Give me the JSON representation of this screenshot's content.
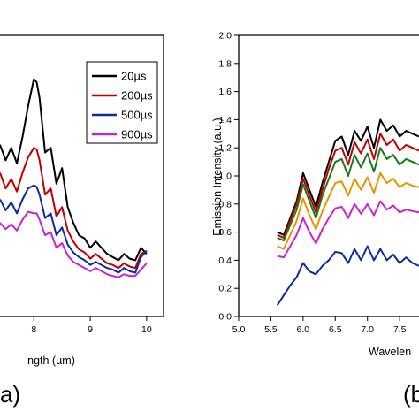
{
  "figure": {
    "panel_a_label": "a)",
    "panel_b_label": "(b"
  },
  "chart_data": [
    {
      "type": "line",
      "panel": "a",
      "xlabel": "ngth (µm)",
      "ylabel": "",
      "xlim": [
        7.4,
        10.3
      ],
      "ylim": [
        0,
        1.8
      ],
      "x_ticks": [
        8,
        9,
        10
      ],
      "x_tick_labels": [
        "8",
        "9",
        "10"
      ],
      "legend": {
        "entries": [
          "20µs",
          "200µs",
          "500µs",
          "900µs"
        ],
        "placement": "top-right"
      },
      "series": [
        {
          "name": "20µs",
          "color": "#000000",
          "x": [
            7.4,
            7.5,
            7.6,
            7.7,
            7.8,
            7.9,
            8.0,
            8.05,
            8.1,
            8.2,
            8.3,
            8.4,
            8.5,
            8.6,
            8.7,
            8.8,
            8.9,
            9.0,
            9.1,
            9.2,
            9.3,
            9.4,
            9.5,
            9.6,
            9.7,
            9.8,
            9.9,
            10.0
          ],
          "y": [
            1.1,
            1.0,
            1.08,
            0.98,
            1.15,
            1.35,
            1.52,
            1.5,
            1.4,
            1.05,
            1.08,
            0.85,
            0.95,
            0.7,
            0.6,
            0.52,
            0.5,
            0.44,
            0.48,
            0.44,
            0.4,
            0.38,
            0.36,
            0.4,
            0.37,
            0.36,
            0.44,
            0.4
          ]
        },
        {
          "name": "200µs",
          "color": "#c00000",
          "x": [
            7.4,
            7.5,
            7.6,
            7.7,
            7.8,
            7.9,
            8.0,
            8.05,
            8.1,
            8.2,
            8.3,
            8.4,
            8.5,
            8.6,
            8.7,
            8.8,
            8.9,
            9.0,
            9.1,
            9.2,
            9.3,
            9.4,
            9.5,
            9.6,
            9.7,
            9.8,
            9.9,
            10.0
          ],
          "y": [
            0.92,
            0.82,
            0.88,
            0.8,
            0.92,
            1.02,
            1.08,
            1.07,
            1.0,
            0.78,
            0.82,
            0.64,
            0.7,
            0.55,
            0.48,
            0.43,
            0.41,
            0.37,
            0.4,
            0.37,
            0.34,
            0.33,
            0.31,
            0.34,
            0.32,
            0.31,
            0.4,
            0.42
          ]
        },
        {
          "name": "500µs",
          "color": "#0a2aa0",
          "x": [
            7.4,
            7.5,
            7.6,
            7.7,
            7.8,
            7.9,
            8.0,
            8.05,
            8.1,
            8.2,
            8.3,
            8.4,
            8.5,
            8.6,
            8.7,
            8.8,
            8.9,
            9.0,
            9.1,
            9.2,
            9.3,
            9.4,
            9.5,
            9.6,
            9.7,
            9.8,
            9.9,
            10.0
          ],
          "y": [
            0.75,
            0.68,
            0.73,
            0.66,
            0.75,
            0.82,
            0.84,
            0.83,
            0.78,
            0.63,
            0.66,
            0.52,
            0.57,
            0.46,
            0.41,
            0.38,
            0.36,
            0.33,
            0.35,
            0.33,
            0.31,
            0.3,
            0.28,
            0.31,
            0.29,
            0.28,
            0.38,
            0.42
          ]
        },
        {
          "name": "900µs",
          "color": "#cc22cc",
          "x": [
            7.4,
            7.5,
            7.6,
            7.7,
            7.8,
            7.9,
            8.0,
            8.05,
            8.1,
            8.2,
            8.3,
            8.4,
            8.5,
            8.6,
            8.7,
            8.8,
            8.9,
            9.0,
            9.1,
            9.2,
            9.3,
            9.4,
            9.5,
            9.6,
            9.7,
            9.8,
            9.9,
            10.0
          ],
          "y": [
            0.6,
            0.56,
            0.59,
            0.55,
            0.62,
            0.67,
            0.66,
            0.66,
            0.62,
            0.52,
            0.54,
            0.44,
            0.47,
            0.39,
            0.35,
            0.33,
            0.31,
            0.29,
            0.31,
            0.29,
            0.27,
            0.26,
            0.25,
            0.27,
            0.26,
            0.26,
            0.3,
            0.34
          ]
        }
      ]
    },
    {
      "type": "line",
      "panel": "b",
      "xlabel": "Wavelen",
      "ylabel": "Emission Intensity (a.u.)",
      "xlim": [
        5.0,
        7.8
      ],
      "ylim": [
        0.0,
        2.0
      ],
      "x_ticks": [
        5.0,
        5.5,
        6.0,
        6.5,
        7.0,
        7.5
      ],
      "x_tick_labels": [
        "5.0",
        "5.5",
        "6.0",
        "6.5",
        "7.0",
        "7.5"
      ],
      "y_ticks": [
        0.0,
        0.2,
        0.4,
        0.6,
        0.8,
        1.0,
        1.2,
        1.4,
        1.6,
        1.8,
        2.0
      ],
      "y_tick_labels": [
        "0.0",
        "0.2",
        "0.4",
        "0.6",
        "0.8",
        "1.0",
        "1.2",
        "1.4",
        "1.6",
        "1.8",
        "2.0"
      ],
      "series": [
        {
          "color": "#000000",
          "x": [
            5.6,
            5.7,
            5.8,
            5.9,
            6.0,
            6.1,
            6.2,
            6.3,
            6.4,
            6.5,
            6.6,
            6.7,
            6.8,
            6.9,
            7.0,
            7.1,
            7.2,
            7.3,
            7.4,
            7.5,
            7.6,
            7.7,
            7.8
          ],
          "y": [
            0.6,
            0.58,
            0.7,
            0.82,
            1.02,
            0.9,
            0.78,
            0.95,
            1.1,
            1.25,
            1.28,
            1.15,
            1.32,
            1.25,
            1.35,
            1.2,
            1.4,
            1.32,
            1.36,
            1.28,
            1.32,
            1.3,
            1.28
          ]
        },
        {
          "color": "#c00000",
          "x": [
            5.6,
            5.7,
            5.8,
            5.9,
            6.0,
            6.1,
            6.2,
            6.3,
            6.4,
            6.5,
            6.6,
            6.7,
            6.8,
            6.9,
            7.0,
            7.1,
            7.2,
            7.3,
            7.4,
            7.5,
            7.6,
            7.7,
            7.8
          ],
          "y": [
            0.58,
            0.56,
            0.68,
            0.8,
            0.98,
            0.86,
            0.74,
            0.9,
            1.05,
            1.18,
            1.2,
            1.08,
            1.24,
            1.16,
            1.26,
            1.12,
            1.3,
            1.22,
            1.26,
            1.18,
            1.22,
            1.2,
            1.18
          ]
        },
        {
          "color": "#1a7a1a",
          "x": [
            5.6,
            5.7,
            5.8,
            5.9,
            6.0,
            6.1,
            6.2,
            6.3,
            6.4,
            6.5,
            6.6,
            6.7,
            6.8,
            6.9,
            7.0,
            7.1,
            7.2,
            7.3,
            7.4,
            7.5,
            7.6,
            7.7,
            7.8
          ],
          "y": [
            0.56,
            0.54,
            0.65,
            0.76,
            0.94,
            0.82,
            0.7,
            0.86,
            0.98,
            1.1,
            1.12,
            1.0,
            1.15,
            1.06,
            1.16,
            1.03,
            1.2,
            1.12,
            1.15,
            1.08,
            1.12,
            1.1,
            1.08
          ]
        },
        {
          "color": "#e69500",
          "x": [
            5.6,
            5.7,
            5.8,
            5.9,
            6.0,
            6.1,
            6.2,
            6.3,
            6.4,
            6.5,
            6.6,
            6.7,
            6.8,
            6.9,
            7.0,
            7.1,
            7.2,
            7.3,
            7.4,
            7.5,
            7.6,
            7.7,
            7.8
          ],
          "y": [
            0.5,
            0.48,
            0.58,
            0.68,
            0.84,
            0.72,
            0.62,
            0.75,
            0.85,
            0.95,
            0.96,
            0.86,
            0.98,
            0.9,
            0.99,
            0.88,
            1.02,
            0.95,
            0.98,
            0.92,
            0.95,
            0.93,
            0.92
          ]
        },
        {
          "color": "#cc22cc",
          "x": [
            5.6,
            5.7,
            5.8,
            5.9,
            6.0,
            6.1,
            6.2,
            6.3,
            6.4,
            6.5,
            6.6,
            6.7,
            6.8,
            6.9,
            7.0,
            7.1,
            7.2,
            7.3,
            7.4,
            7.5,
            7.6,
            7.7,
            7.8
          ],
          "y": [
            0.43,
            0.42,
            0.5,
            0.58,
            0.7,
            0.6,
            0.52,
            0.62,
            0.7,
            0.77,
            0.78,
            0.7,
            0.8,
            0.73,
            0.8,
            0.72,
            0.82,
            0.76,
            0.79,
            0.74,
            0.76,
            0.75,
            0.74
          ]
        },
        {
          "color": "#0a2aa0",
          "x": [
            5.6,
            5.7,
            5.8,
            5.9,
            6.0,
            6.1,
            6.2,
            6.3,
            6.4,
            6.5,
            6.6,
            6.7,
            6.8,
            6.9,
            7.0,
            7.1,
            7.2,
            7.3,
            7.4,
            7.5,
            7.6,
            7.7,
            7.8
          ],
          "y": [
            0.08,
            0.15,
            0.22,
            0.28,
            0.38,
            0.32,
            0.3,
            0.36,
            0.4,
            0.46,
            0.45,
            0.38,
            0.48,
            0.4,
            0.5,
            0.4,
            0.48,
            0.4,
            0.44,
            0.38,
            0.42,
            0.38,
            0.36
          ]
        }
      ]
    }
  ]
}
